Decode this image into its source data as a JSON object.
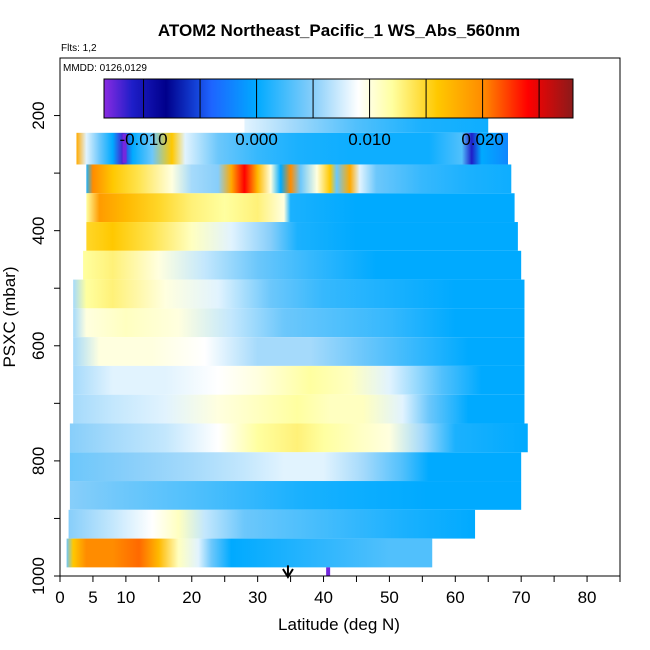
{
  "chart_data": {
    "type": "heatmap",
    "title": "ATOM2 Northeast_Pacific_1 WS_Abs_560nm",
    "flights_label": "Flts: 1,2",
    "date_label": "MMDD: 0126,0129",
    "xlabel": "Latitude (deg N)",
    "ylabel": "PSXC (mbar)",
    "xlim": [
      0,
      85
    ],
    "ylim": [
      1000,
      100
    ],
    "x_ticks": [
      0,
      5,
      10,
      20,
      30,
      40,
      50,
      60,
      70,
      80
    ],
    "x_minor_ticks": [
      15,
      25,
      35,
      45,
      55,
      65,
      75,
      85
    ],
    "y_ticks": [
      200,
      400,
      600,
      800,
      1000
    ],
    "y_minor_ticks": [
      300,
      500,
      700,
      900
    ],
    "colorbar": {
      "range": [
        -0.0135,
        0.028
      ],
      "tick_values": [
        -0.01,
        0.0,
        0.01,
        0.02
      ],
      "tick_labels": [
        "-0.010",
        "0.000",
        "0.010",
        "0.020"
      ],
      "stops": [
        {
          "v": -0.0135,
          "c": "#8a2be2"
        },
        {
          "v": -0.011,
          "c": "#1e1ec8"
        },
        {
          "v": -0.008,
          "c": "#00008b"
        },
        {
          "v": -0.004,
          "c": "#1e64ff"
        },
        {
          "v": 0.0,
          "c": "#00aaff"
        },
        {
          "v": 0.005,
          "c": "#87cefa"
        },
        {
          "v": 0.009,
          "c": "#ffffff"
        },
        {
          "v": 0.012,
          "c": "#ffffa0"
        },
        {
          "v": 0.016,
          "c": "#ffc800"
        },
        {
          "v": 0.02,
          "c": "#ff8c00"
        },
        {
          "v": 0.024,
          "c": "#ff0000"
        },
        {
          "v": 0.028,
          "c": "#8b1a1a"
        }
      ]
    },
    "rows": [
      {
        "p0": 180,
        "p1": 230,
        "lat_min": 28,
        "lat_max": 65,
        "knots": [
          [
            28,
            0.008
          ],
          [
            35,
            0.006
          ],
          [
            45,
            0.003
          ],
          [
            55,
            0.001
          ],
          [
            65,
            0.0005
          ]
        ]
      },
      {
        "p0": 230,
        "p1": 285,
        "lat_min": 2.5,
        "lat_max": 68,
        "knots": [
          [
            2.5,
            0.018
          ],
          [
            4,
            0.008
          ],
          [
            6,
            0.004
          ],
          [
            8,
            0.0
          ],
          [
            9.5,
            -0.012
          ],
          [
            11,
            0.0
          ],
          [
            14,
            0.004
          ],
          [
            17,
            0.016
          ],
          [
            19,
            0.008
          ],
          [
            24,
            0.004
          ],
          [
            30,
            0.002
          ],
          [
            36,
            0.001
          ],
          [
            44,
            0.0005
          ],
          [
            56,
            0.0005
          ],
          [
            61,
            0.003
          ],
          [
            62.5,
            -0.011
          ],
          [
            64,
            0.0
          ],
          [
            68,
            -0.002
          ]
        ]
      },
      {
        "p0": 285,
        "p1": 335,
        "lat_min": 4,
        "lat_max": 68.5,
        "knots": [
          [
            4,
            0.001
          ],
          [
            5,
            0.02
          ],
          [
            8,
            0.016
          ],
          [
            12,
            0.014
          ],
          [
            17,
            0.01
          ],
          [
            20,
            0.006
          ],
          [
            24,
            0.005
          ],
          [
            26,
            0.018
          ],
          [
            28,
            0.024
          ],
          [
            30,
            0.017
          ],
          [
            32,
            0.01
          ],
          [
            33.5,
            0.0
          ],
          [
            35,
            0.02
          ],
          [
            36.5,
            0.004
          ],
          [
            39,
            0.01
          ],
          [
            41,
            0.016
          ],
          [
            42,
            0.004
          ],
          [
            44,
            0.018
          ],
          [
            45.5,
            0.008
          ],
          [
            48,
            0.004
          ],
          [
            55,
            0.002
          ],
          [
            62,
            0.001
          ],
          [
            68.5,
            0.0005
          ]
        ]
      },
      {
        "p0": 335,
        "p1": 385,
        "lat_min": 4,
        "lat_max": 69,
        "knots": [
          [
            4,
            0.012
          ],
          [
            6,
            0.019
          ],
          [
            10,
            0.017
          ],
          [
            15,
            0.015
          ],
          [
            20,
            0.013
          ],
          [
            25,
            0.012
          ],
          [
            30,
            0.013
          ],
          [
            34,
            0.01
          ],
          [
            35,
            0.001
          ],
          [
            45,
            0.0
          ],
          [
            60,
            0.0
          ],
          [
            69,
            0.0
          ]
        ]
      },
      {
        "p0": 385,
        "p1": 435,
        "lat_min": 4,
        "lat_max": 69.5,
        "knots": [
          [
            4,
            0.015
          ],
          [
            8,
            0.016
          ],
          [
            14,
            0.014
          ],
          [
            20,
            0.011
          ],
          [
            26,
            0.008
          ],
          [
            32,
            0.005
          ],
          [
            36,
            0.001
          ],
          [
            45,
            0.0
          ],
          [
            60,
            0.0
          ],
          [
            69.5,
            0.0
          ]
        ]
      },
      {
        "p0": 435,
        "p1": 485,
        "lat_min": 3.5,
        "lat_max": 70,
        "knots": [
          [
            3.5,
            0.012
          ],
          [
            8,
            0.013
          ],
          [
            15,
            0.01
          ],
          [
            22,
            0.007
          ],
          [
            30,
            0.004
          ],
          [
            38,
            0.002
          ],
          [
            48,
            0.0
          ],
          [
            60,
            0.0
          ],
          [
            70,
            0.0
          ]
        ]
      },
      {
        "p0": 485,
        "p1": 535,
        "lat_min": 2,
        "lat_max": 70.5,
        "knots": [
          [
            2,
            0.006
          ],
          [
            4,
            0.012
          ],
          [
            8,
            0.013
          ],
          [
            16,
            0.01
          ],
          [
            24,
            0.008
          ],
          [
            32,
            0.004
          ],
          [
            40,
            0.002
          ],
          [
            50,
            0.001
          ],
          [
            60,
            0.0
          ],
          [
            70.5,
            0.0
          ]
        ]
      },
      {
        "p0": 535,
        "p1": 585,
        "lat_min": 2,
        "lat_max": 70.5,
        "knots": [
          [
            2,
            0.006
          ],
          [
            4,
            0.01
          ],
          [
            10,
            0.011
          ],
          [
            18,
            0.01
          ],
          [
            26,
            0.007
          ],
          [
            34,
            0.004
          ],
          [
            42,
            0.003
          ],
          [
            50,
            0.002
          ],
          [
            60,
            0.0
          ],
          [
            70.5,
            0.0
          ]
        ]
      },
      {
        "p0": 585,
        "p1": 635,
        "lat_min": 2,
        "lat_max": 70.5,
        "knots": [
          [
            2,
            0.006
          ],
          [
            6,
            0.01
          ],
          [
            14,
            0.01
          ],
          [
            22,
            0.009
          ],
          [
            30,
            0.006
          ],
          [
            38,
            0.006
          ],
          [
            46,
            0.004
          ],
          [
            54,
            0.002
          ],
          [
            62,
            0.0
          ],
          [
            70.5,
            0.0
          ]
        ]
      },
      {
        "p0": 635,
        "p1": 685,
        "lat_min": 2,
        "lat_max": 70.5,
        "knots": [
          [
            2,
            0.006
          ],
          [
            8,
            0.008
          ],
          [
            16,
            0.008
          ],
          [
            24,
            0.009
          ],
          [
            30,
            0.01
          ],
          [
            38,
            0.012
          ],
          [
            44,
            0.011
          ],
          [
            50,
            0.008
          ],
          [
            58,
            0.003
          ],
          [
            64,
            0.0
          ],
          [
            70.5,
            0.0
          ]
        ]
      },
      {
        "p0": 685,
        "p1": 735,
        "lat_min": 2,
        "lat_max": 70.5,
        "knots": [
          [
            2,
            0.006
          ],
          [
            8,
            0.007
          ],
          [
            16,
            0.008
          ],
          [
            24,
            0.01
          ],
          [
            30,
            0.011
          ],
          [
            36,
            0.012
          ],
          [
            41,
            0.011
          ],
          [
            46,
            0.011
          ],
          [
            52,
            0.008
          ],
          [
            56,
            0.004
          ],
          [
            62,
            0.0
          ],
          [
            70.5,
            0.0
          ]
        ]
      },
      {
        "p0": 735,
        "p1": 785,
        "lat_min": 1.5,
        "lat_max": 71,
        "knots": [
          [
            1.5,
            0.005
          ],
          [
            8,
            0.006
          ],
          [
            16,
            0.007
          ],
          [
            24,
            0.009
          ],
          [
            30,
            0.012
          ],
          [
            36,
            0.013
          ],
          [
            40,
            0.012
          ],
          [
            45,
            0.011
          ],
          [
            50,
            0.01
          ],
          [
            55,
            0.006
          ],
          [
            60,
            0.001
          ],
          [
            71,
            0.0
          ]
        ]
      },
      {
        "p0": 785,
        "p1": 835,
        "lat_min": 1.5,
        "lat_max": 70,
        "knots": [
          [
            1.5,
            0.004
          ],
          [
            10,
            0.005
          ],
          [
            20,
            0.006
          ],
          [
            28,
            0.007
          ],
          [
            34,
            0.008
          ],
          [
            40,
            0.008
          ],
          [
            46,
            0.006
          ],
          [
            52,
            0.003
          ],
          [
            56,
            0.0
          ],
          [
            62,
            0.0
          ],
          [
            70,
            0.0
          ]
        ]
      },
      {
        "p0": 835,
        "p1": 885,
        "lat_min": 1.5,
        "lat_max": 70,
        "knots": [
          [
            1.5,
            0.005
          ],
          [
            10,
            0.004
          ],
          [
            20,
            0.003
          ],
          [
            28,
            0.002
          ],
          [
            36,
            0.001
          ],
          [
            44,
            0.0005
          ],
          [
            56,
            0.0
          ],
          [
            70,
            0.0
          ]
        ]
      },
      {
        "p0": 885,
        "p1": 935,
        "lat_min": 1.3,
        "lat_max": 63,
        "knots": [
          [
            1.3,
            0.005
          ],
          [
            8,
            0.007
          ],
          [
            14,
            0.009
          ],
          [
            18,
            0.011
          ],
          [
            22,
            0.007
          ],
          [
            28,
            0.004
          ],
          [
            36,
            0.003
          ],
          [
            44,
            0.002
          ],
          [
            52,
            0.001
          ],
          [
            63,
            0.0
          ]
        ]
      },
      {
        "p0": 935,
        "p1": 985,
        "lat_min": 1.0,
        "lat_max": 56.5,
        "knots": [
          [
            1.0,
            0.004
          ],
          [
            2,
            0.016
          ],
          [
            4,
            0.02
          ],
          [
            8,
            0.02
          ],
          [
            12,
            0.021
          ],
          [
            15,
            0.017
          ],
          [
            18,
            0.011
          ],
          [
            21,
            0.008
          ],
          [
            23,
            0.004
          ],
          [
            26,
            0.0
          ],
          [
            34,
            0.001
          ],
          [
            42,
            0.002
          ],
          [
            50,
            0.003
          ],
          [
            56.5,
            0.003
          ]
        ]
      }
    ],
    "vertical_segments": [
      {
        "lat": 9.8,
        "p0": 232,
        "p1": 282,
        "value": -0.013
      },
      {
        "lat": 40.7,
        "p0": 985,
        "p1": 1000,
        "value": -0.013
      }
    ],
    "arrow_marker": {
      "lat": 34.6,
      "p_top": 985,
      "p_bottom": 1000
    }
  }
}
